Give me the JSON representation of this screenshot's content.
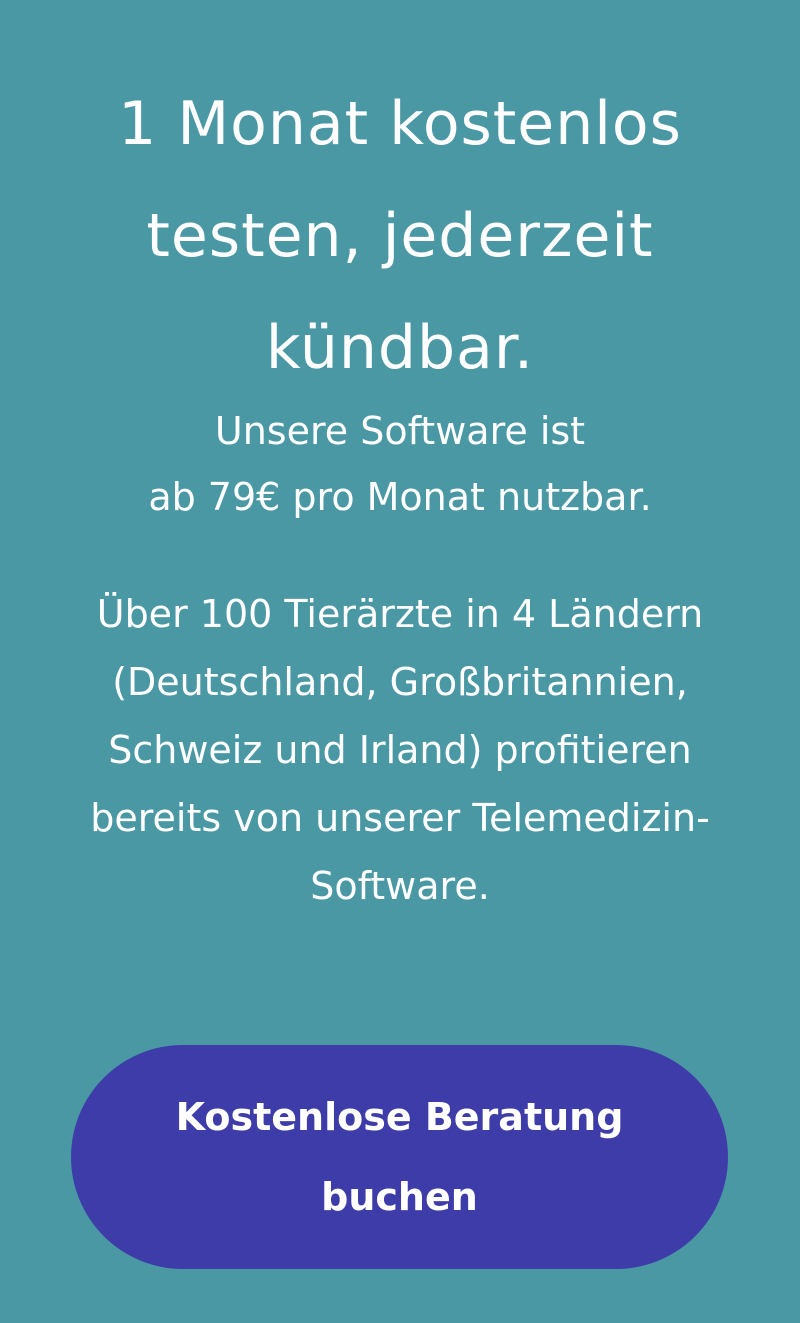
{
  "headline": "1 Monat kostenlos testen, jederzeit kündbar.",
  "subheadline_line1": "Unsere Software ist",
  "subheadline_line2": "ab 79€ pro Monat nutzbar.",
  "body": "Über 100 Tierärzte in 4 Ländern (Deutschland, Großbritannien, Schweiz und Irland) profitieren bereits von unserer Telemedizin-Software.",
  "cta_button": "Kostenlose Beratung buchen",
  "colors": {
    "background": "#4a98a4",
    "button": "#3e3ca9",
    "text": "#ffffff"
  }
}
